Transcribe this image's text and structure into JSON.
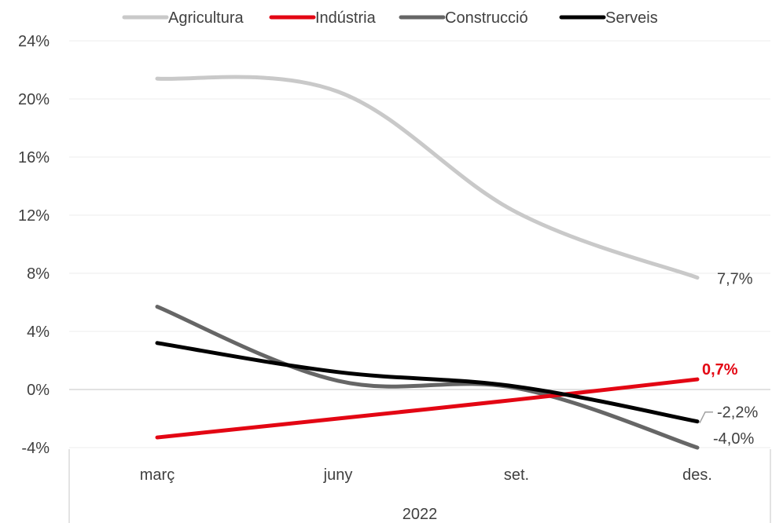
{
  "chart_data": {
    "type": "line",
    "categories": [
      "març",
      "juny",
      "set.",
      "des."
    ],
    "group_label": "2022",
    "yticks": [
      "24%",
      "20%",
      "16%",
      "12%",
      "8%",
      "4%",
      "0%",
      "-4%"
    ],
    "ylim": [
      -4,
      24
    ],
    "grid": true,
    "legend_position": "top",
    "series": [
      {
        "name": "Agricultura",
        "values": [
          21.4,
          20.5,
          12.2,
          7.7
        ],
        "color": "#c9c9c9",
        "end_label": "7,7%"
      },
      {
        "name": "Indústria",
        "values": [
          -3.3,
          -2.0,
          -0.7,
          0.7
        ],
        "color": "#e30613",
        "end_label": "0,7%"
      },
      {
        "name": "Construcció",
        "values": [
          5.7,
          0.6,
          0.1,
          -4.0
        ],
        "color": "#666666",
        "end_label": "-4,0%"
      },
      {
        "name": "Serveis",
        "values": [
          3.2,
          1.2,
          0.2,
          -2.2
        ],
        "color": "#000000",
        "end_label": "-2,2%"
      }
    ]
  }
}
